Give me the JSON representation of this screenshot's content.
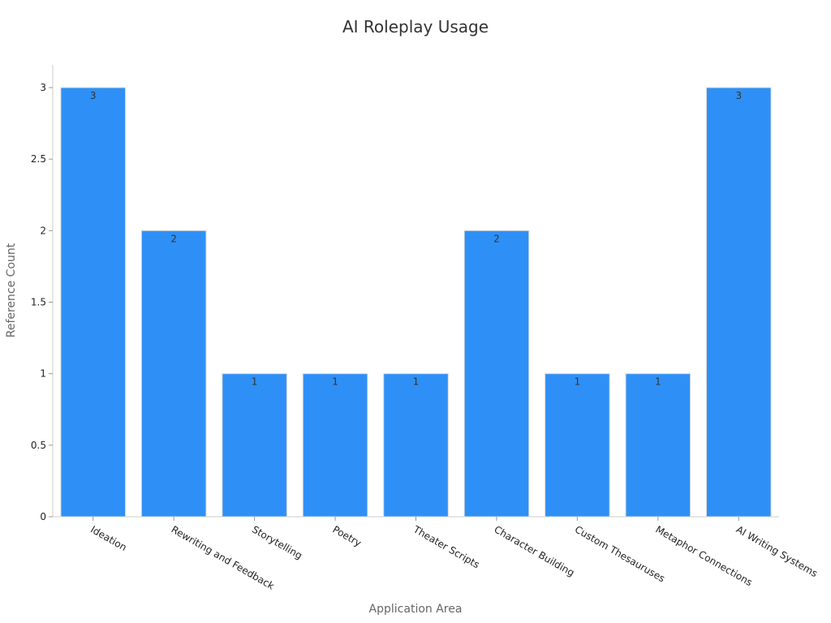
{
  "chart_data": {
    "type": "bar",
    "title": "AI Roleplay Usage",
    "xlabel": "Application Area",
    "ylabel": "Reference Count",
    "categories": [
      "Ideation",
      "Rewriting and Feedback",
      "Storytelling",
      "Poetry",
      "Theater Scripts",
      "Character Building",
      "Custom Thesauruses",
      "Metaphor Connections",
      "AI Writing Systems"
    ],
    "values": [
      3,
      2,
      1,
      1,
      1,
      2,
      1,
      1,
      3
    ],
    "ylim": [
      0,
      3
    ],
    "yticks": [
      "0",
      "0.5",
      "1",
      "1.5",
      "2",
      "2.5",
      "3"
    ],
    "grid": false,
    "legend": "none",
    "colors": {
      "bar": "#2e90f7"
    }
  }
}
